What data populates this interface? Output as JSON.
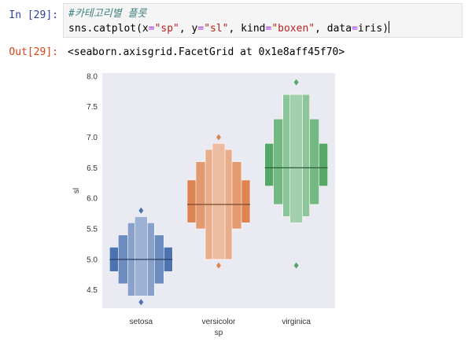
{
  "cell": {
    "in_prompt": "In [29]:",
    "out_prompt": "Out[29]:",
    "code_comment": "#카테고리별 플롯",
    "code": {
      "fn": "sns.catplot(",
      "x_kw": "x",
      "x_val": "\"sp\"",
      "y_kw": "y",
      "y_val": "\"sl\"",
      "kind_kw": "kind",
      "kind_val": "\"boxen\"",
      "data_kw": "data",
      "data_val": "iris",
      "close": ")"
    },
    "output_text": "<seaborn.axisgrid.FacetGrid at 0x1e8aff45f70>"
  },
  "chart_data": {
    "type": "boxen",
    "xlabel": "sp",
    "ylabel": "sl",
    "ylim": [
      4.2,
      8.05
    ],
    "yticks": [
      4.5,
      5.0,
      5.5,
      6.0,
      6.5,
      7.0,
      7.5,
      8.0
    ],
    "ytick_labels": [
      "4.5",
      "5.0",
      "5.5",
      "6.0",
      "6.5",
      "7.0",
      "7.5",
      "8.0"
    ],
    "background": "#eaeaf2",
    "grid": false,
    "categories": [
      "setosa",
      "versicolor",
      "virginica"
    ],
    "series": [
      {
        "color": "#4c72b0",
        "median": 5.0,
        "levels": [
          {
            "lo": 4.8,
            "hi": 5.2
          },
          {
            "lo": 4.6,
            "hi": 5.4
          },
          {
            "lo": 4.4,
            "hi": 5.6
          },
          {
            "lo": 4.4,
            "hi": 5.7
          }
        ],
        "outliers": [
          4.3,
          5.8
        ]
      },
      {
        "color": "#dd8452",
        "median": 5.9,
        "levels": [
          {
            "lo": 5.6,
            "hi": 6.3
          },
          {
            "lo": 5.5,
            "hi": 6.6
          },
          {
            "lo": 5.0,
            "hi": 6.8
          },
          {
            "lo": 5.0,
            "hi": 6.9
          }
        ],
        "outliers": [
          4.9,
          7.0
        ]
      },
      {
        "color": "#55a868",
        "median": 6.5,
        "levels": [
          {
            "lo": 6.2,
            "hi": 6.9
          },
          {
            "lo": 5.9,
            "hi": 7.3
          },
          {
            "lo": 5.7,
            "hi": 7.7
          },
          {
            "lo": 5.6,
            "hi": 7.7
          }
        ],
        "outliers": [
          4.9,
          7.9
        ]
      }
    ]
  }
}
